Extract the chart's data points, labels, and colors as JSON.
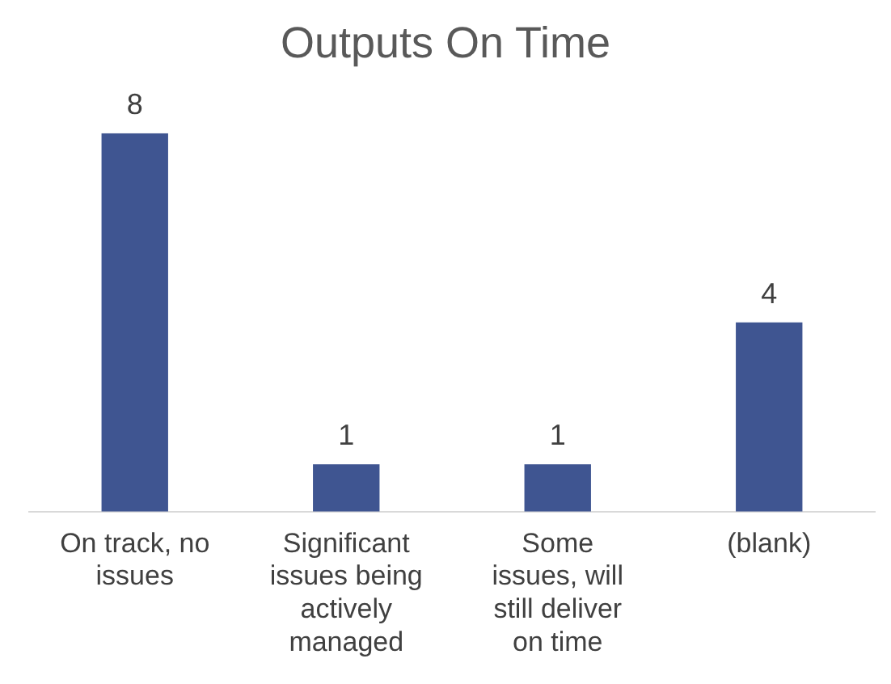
{
  "chart_data": {
    "type": "bar",
    "title": "Outputs On Time",
    "categories": [
      "On track, no issues",
      "Significant issues being actively managed",
      "Some issues, will still deliver on time",
      "(blank)"
    ],
    "values": [
      8,
      1,
      1,
      4
    ],
    "color": "#3f5591",
    "data_labels": true,
    "relative": false,
    "grid": false,
    "legend": false
  }
}
